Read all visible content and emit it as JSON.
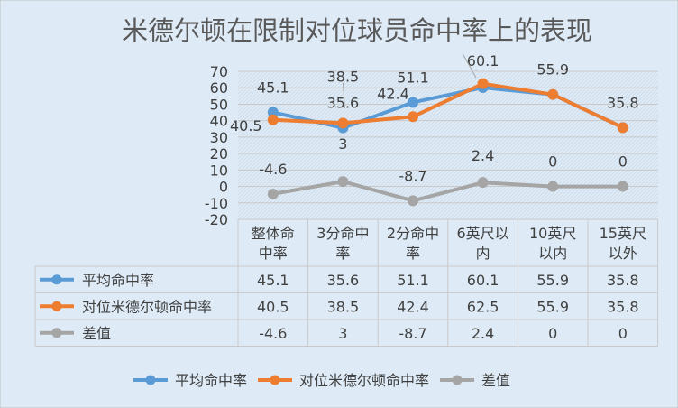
{
  "chart_data": {
    "type": "line",
    "title": "米德尔顿在限制对位球员命中率上的表现",
    "categories": [
      "整体命中率",
      "3分命中率",
      "2分命中率",
      "6英尺以内",
      "10英尺以内",
      "15英尺以外"
    ],
    "category_lines": [
      [
        "整体命",
        "中率"
      ],
      [
        "3分命中",
        "率"
      ],
      [
        "2分命中",
        "率"
      ],
      [
        "6英尺以",
        "内"
      ],
      [
        "10英尺",
        "以内"
      ],
      [
        "15英尺",
        "以外"
      ]
    ],
    "series": [
      {
        "name": "平均命中率",
        "values": [
          45.1,
          35.6,
          51.1,
          60.1,
          55.9,
          35.8
        ],
        "color": "#5B9BD5"
      },
      {
        "name": "对位米德尔顿命中率",
        "values": [
          40.5,
          38.5,
          42.4,
          62.5,
          55.9,
          35.8
        ],
        "color": "#ED7D31"
      },
      {
        "name": "差值",
        "values": [
          -4.6,
          3,
          -8.7,
          2.4,
          0,
          0
        ],
        "color": "#A5A5A5"
      }
    ],
    "data_labels": [
      [
        "45.1",
        "35.6",
        "51.1",
        "60.1",
        "55.9",
        "35.8"
      ],
      [
        "40.5",
        "38.5",
        "42.4",
        "",
        "",
        ""
      ],
      [
        "-4.6",
        "3",
        "-8.7",
        "2.4",
        "0",
        "0"
      ]
    ],
    "table_values": [
      [
        "45.1",
        "35.6",
        "51.1",
        "60.1",
        "55.9",
        "35.8"
      ],
      [
        "40.5",
        "38.5",
        "42.4",
        "62.5",
        "55.9",
        "35.8"
      ],
      [
        "-4.6",
        "3",
        "-8.7",
        "2.4",
        "0",
        "0"
      ]
    ],
    "y_ticks": [
      70,
      60,
      50,
      40,
      30,
      20,
      10,
      0,
      -10,
      -20
    ],
    "ylim": [
      -20,
      70
    ],
    "grid": true,
    "legend": "bottom",
    "background": "#DEEBF7",
    "gridline_color": "#C9C9C9",
    "title_color": "#595959",
    "text_color": "#404040"
  }
}
